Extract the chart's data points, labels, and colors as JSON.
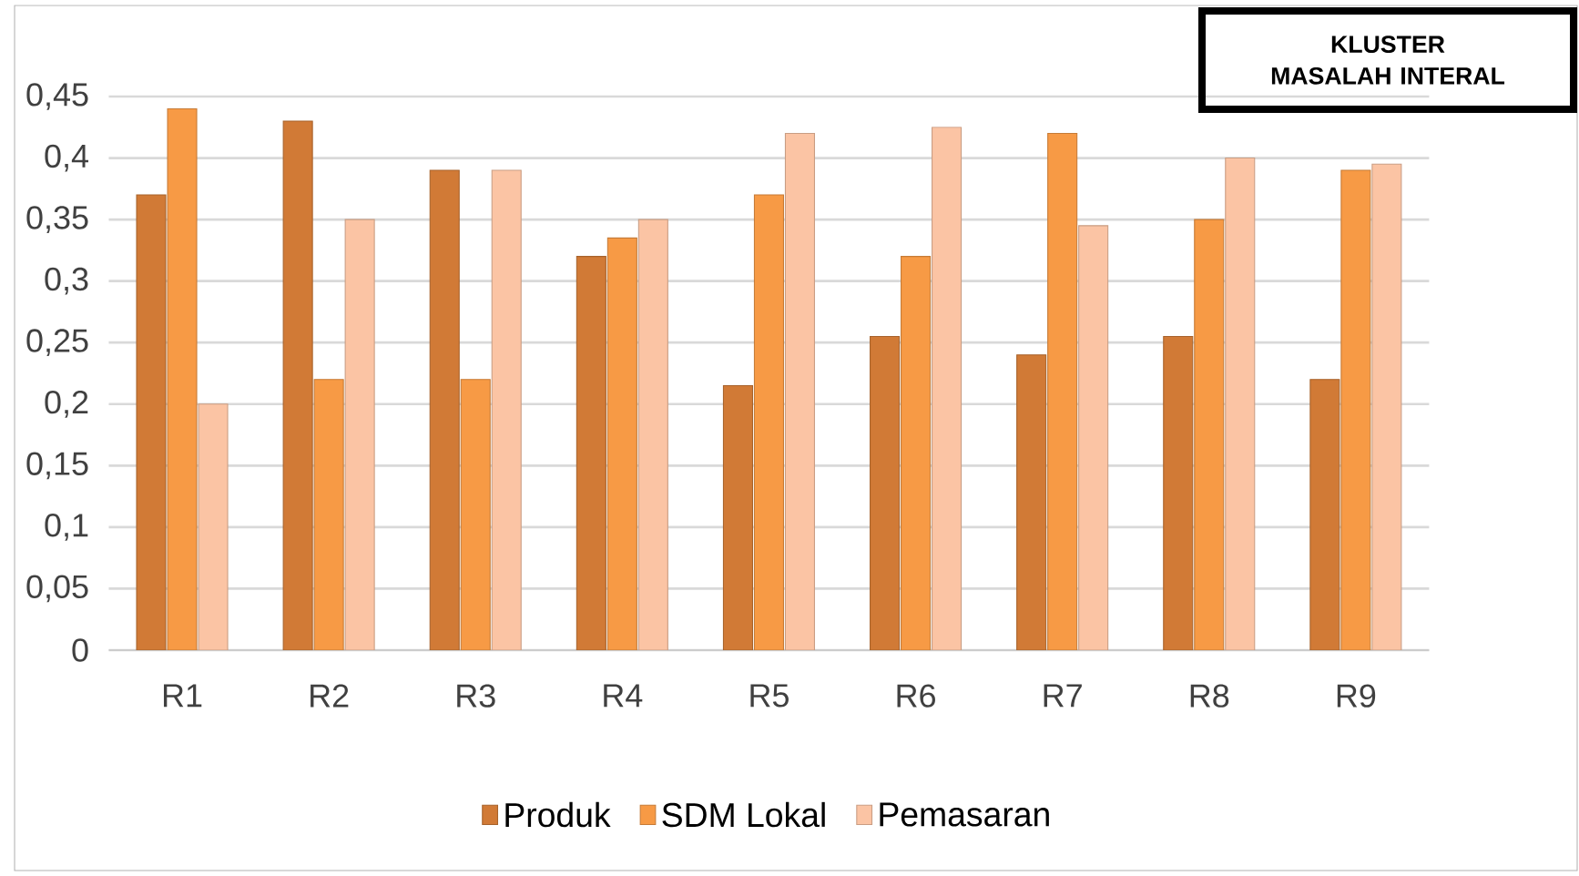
{
  "chart_data": {
    "type": "bar",
    "title": "KLUSTER MASALAH INTERAL",
    "categories": [
      "R1",
      "R2",
      "R3",
      "R4",
      "R5",
      "R6",
      "R7",
      "R8",
      "R9"
    ],
    "series": [
      {
        "name": "Produk",
        "color": "#d17a36",
        "values": [
          0.37,
          0.43,
          0.39,
          0.32,
          0.215,
          0.255,
          0.24,
          0.255,
          0.22
        ]
      },
      {
        "name": "SDM Lokal",
        "color": "#f79a45",
        "values": [
          0.44,
          0.22,
          0.22,
          0.335,
          0.37,
          0.32,
          0.42,
          0.35,
          0.39
        ]
      },
      {
        "name": "Pemasaran",
        "color": "#fbc4a4",
        "values": [
          0.2,
          0.35,
          0.39,
          0.35,
          0.42,
          0.425,
          0.345,
          0.4,
          0.395
        ]
      }
    ],
    "ylim": [
      0,
      0.45
    ],
    "yticks": [
      {
        "value": 0,
        "label": "0"
      },
      {
        "value": 0.05,
        "label": "0,05"
      },
      {
        "value": 0.1,
        "label": "0,1"
      },
      {
        "value": 0.15,
        "label": "0,15"
      },
      {
        "value": 0.2,
        "label": "0,2"
      },
      {
        "value": 0.25,
        "label": "0,25"
      },
      {
        "value": 0.3,
        "label": "0,3"
      },
      {
        "value": 0.35,
        "label": "0,35"
      },
      {
        "value": 0.4,
        "label": "0,4"
      },
      {
        "value": 0.45,
        "label": "0,45"
      }
    ],
    "grid": "y",
    "legend": "bottom"
  }
}
